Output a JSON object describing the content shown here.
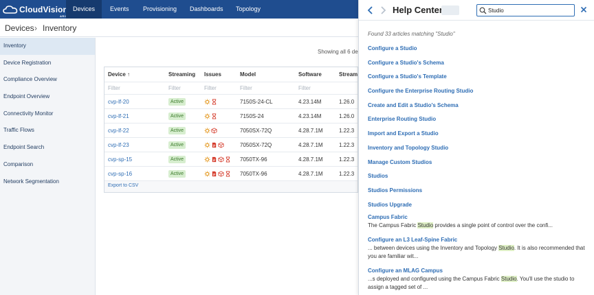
{
  "app": {
    "logo_text": "CloudVision",
    "logo_sub": "ARISTA"
  },
  "nav": [
    "Devices",
    "Events",
    "Provisioning",
    "Dashboards",
    "Topology"
  ],
  "breadcrumb": {
    "parent": "Devices",
    "current": "Inventory"
  },
  "sidebar": [
    "Inventory",
    "Device Registration",
    "Compliance Overview",
    "Endpoint Overview",
    "Connectivity Monitor",
    "Traffic Flows",
    "Endpoint Search",
    "Comparison",
    "Network Segmentation"
  ],
  "showing": "Showing all 6 de",
  "table": {
    "headers": {
      "device": "Device ↑",
      "streaming": "Streaming",
      "issues": "Issues",
      "model": "Model",
      "software": "Software",
      "streamer": "Stream"
    },
    "filter_placeholder": "Filter",
    "rows": [
      {
        "device": "cvp-lf-20",
        "streaming": "Active",
        "model": "7150S-24-CL",
        "software": "4.23.14M",
        "streamer": "1.26.0"
      },
      {
        "device": "cvp-lf-21",
        "streaming": "Active",
        "model": "7150S-24",
        "software": "4.23.14M",
        "streamer": "1.26.0"
      },
      {
        "device": "cvp-lf-22",
        "streaming": "Active",
        "model": "7050SX-72Q",
        "software": "4.28.7.1M",
        "streamer": "1.22.3"
      },
      {
        "device": "cvp-lf-23",
        "streaming": "Active",
        "model": "7050SX-72Q",
        "software": "4.28.7.1M",
        "streamer": "1.22.3"
      },
      {
        "device": "cvp-sp-15",
        "streaming": "Active",
        "model": "7050TX-96",
        "software": "4.28.7.1M",
        "streamer": "1.22.3"
      },
      {
        "device": "cvp-sp-16",
        "streaming": "Active",
        "model": "7050TX-96",
        "software": "4.28.7.1M",
        "streamer": "1.22.3"
      }
    ],
    "export_label": "Export to CSV"
  },
  "colors": {
    "nav_bg": "#1f4d8f",
    "link": "#2e6db4",
    "active_badge": "#d7eecf",
    "highlight": "#dff0c6"
  },
  "help": {
    "title": "Help Center",
    "search_value": "Studio",
    "found_text": "Found 33 articles matching \"Studio\"",
    "articles": [
      "Configure a Studio",
      "Configure a Studio's Schema",
      "Configure a Studio's Template",
      "Configure the Enterprise Routing Studio",
      "Create and Edit a Studio's Schema",
      "Enterprise Routing Studio",
      "Import and Export a Studio",
      "Inventory and Topology Studio",
      "Manage Custom Studios",
      "Studios",
      "Studios Permissions",
      "Studios Upgrade"
    ],
    "rich_articles": [
      {
        "title": "Campus Fabric",
        "pre": "The Campus Fabric ",
        "hl": "Studio",
        "post": " provides a single point of control over the confi..."
      },
      {
        "title": "Configure an L3 Leaf-Spine Fabric",
        "pre": "... between devices using the Inventory and Topology ",
        "hl": "Studio",
        "post": ". It is also recommended that you are familiar wit..."
      },
      {
        "title": "Configure an MLAG Campus",
        "pre": "...s deployed and configured using the Campus Fabric ",
        "hl": "Studio",
        "post": ". You'll use the studio to assign a tagged set of ..."
      }
    ]
  }
}
